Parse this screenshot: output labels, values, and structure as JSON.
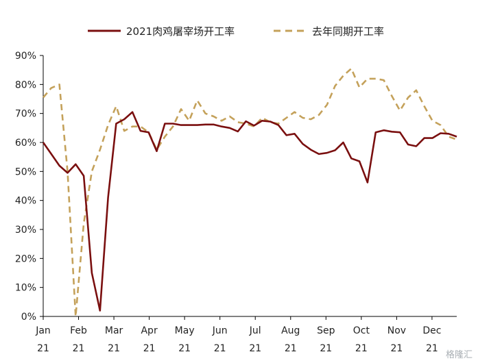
{
  "chart_data": {
    "type": "line",
    "title": "",
    "xlabel": "",
    "ylabel": "",
    "ylim": [
      0,
      90
    ],
    "y_ticks": [
      "0%",
      "10%",
      "20%",
      "30%",
      "40%",
      "50%",
      "60%",
      "70%",
      "80%",
      "90%"
    ],
    "x_ticks": [
      {
        "month": "Jan",
        "year": "21"
      },
      {
        "month": "Feb",
        "year": "21"
      },
      {
        "month": "Mar",
        "year": "21"
      },
      {
        "month": "Apr",
        "year": "21"
      },
      {
        "month": "May",
        "year": "21"
      },
      {
        "month": "Jun",
        "year": "21"
      },
      {
        "month": "Jul",
        "year": "21"
      },
      {
        "month": "Aug",
        "year": "21"
      },
      {
        "month": "Sep",
        "year": "21"
      },
      {
        "month": "Oct",
        "year": "21"
      },
      {
        "month": "Nov",
        "year": "21"
      },
      {
        "month": "Dec",
        "year": "21"
      }
    ],
    "grid": false,
    "legend_position": "top",
    "series": [
      {
        "name": "2021肉鸡屠宰场开工率",
        "color": "#7a0f0f",
        "style": "solid",
        "x": [
          0,
          1,
          2,
          3,
          4,
          5,
          6,
          7,
          8,
          9,
          10,
          11,
          12,
          13,
          14,
          15,
          16,
          17,
          18,
          19,
          20,
          21,
          22,
          23,
          24,
          25,
          26,
          27,
          28,
          29,
          30,
          31,
          32,
          33,
          34,
          35,
          36,
          37,
          38,
          39,
          40,
          41,
          42,
          43,
          44,
          45,
          46,
          47,
          48,
          49,
          50,
          51
        ],
        "values": [
          60,
          56,
          52,
          49.5,
          52.5,
          48.5,
          15,
          2,
          41,
          66.5,
          68,
          70.5,
          64,
          63.5,
          57,
          66.5,
          66.5,
          66,
          66,
          66,
          66.2,
          66.2,
          65.5,
          65,
          63.8,
          67.3,
          65.8,
          67.5,
          67.2,
          66,
          62.5,
          63,
          59.5,
          57.5,
          56,
          56.4,
          57.3,
          60,
          54.5,
          53.5,
          46.2,
          63.5,
          64.2,
          63.7,
          63.5,
          59.3,
          58.7,
          61.5,
          61.5,
          63.2,
          63,
          62
        ]
      },
      {
        "name": "去年同期开工率",
        "color": "#c4a15a",
        "style": "dashed",
        "x": [
          0,
          1,
          2,
          3,
          4,
          5,
          6,
          7,
          8,
          9,
          10,
          11,
          12,
          13,
          14,
          15,
          16,
          17,
          18,
          19,
          20,
          21,
          22,
          23,
          24,
          25,
          26,
          27,
          28,
          29,
          30,
          31,
          32,
          33,
          34,
          35,
          36,
          37,
          38,
          39,
          40,
          41,
          42,
          43,
          44,
          45,
          46,
          47,
          48,
          49,
          50,
          51
        ],
        "values": [
          75.5,
          78.8,
          80,
          50,
          0,
          32,
          50,
          57.5,
          66,
          72.5,
          64,
          65.5,
          65.5,
          63.5,
          57.5,
          62,
          65.5,
          71.5,
          67.5,
          74.5,
          70,
          69,
          67.5,
          69,
          67,
          66.5,
          65.5,
          68.5,
          67,
          66.5,
          68.5,
          70.5,
          68.5,
          68,
          69.5,
          73,
          79.5,
          83,
          85.5,
          79,
          82,
          82,
          81.5,
          76,
          71,
          75.5,
          78,
          72.5,
          67.5,
          66,
          62,
          61
        ]
      }
    ]
  },
  "watermark_text": "格隆汇"
}
